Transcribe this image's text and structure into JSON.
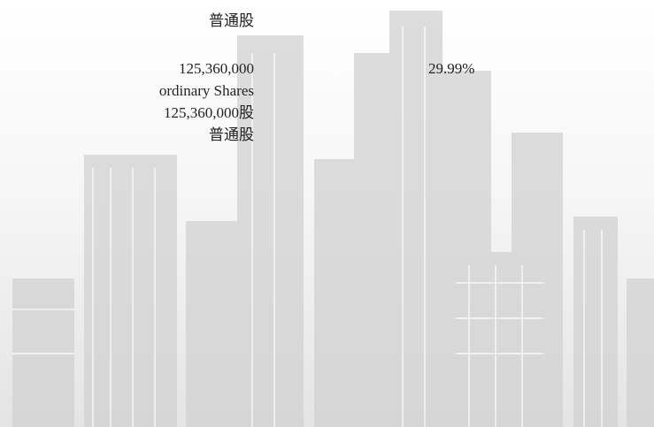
{
  "rows": [
    {
      "shares": [
        "普通股"
      ]
    },
    {
      "shares": [
        "125,360,000",
        "ordinary Shares",
        "125,360,000股",
        "普通股"
      ],
      "percentage": "29.99%"
    }
  ]
}
